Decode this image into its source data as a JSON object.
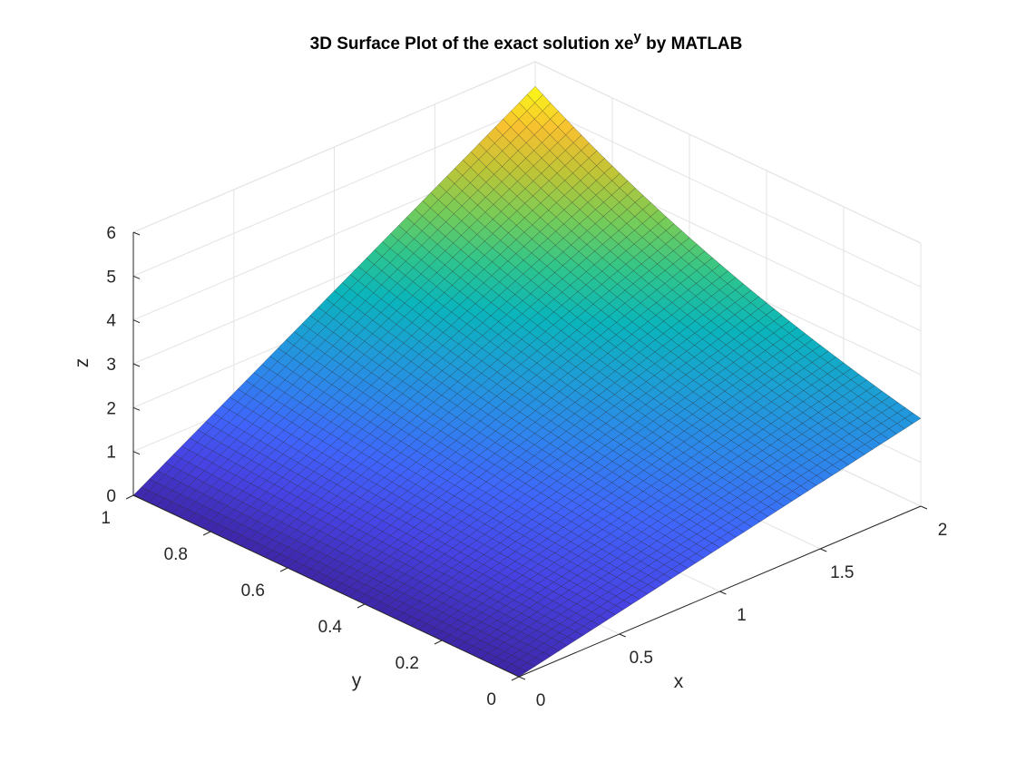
{
  "chart_data": {
    "type": "surface",
    "title_prefix": "3D Surface Plot of the exact solution  xe",
    "title_superscript": "y",
    "title_suffix": " by MATLAB",
    "function": "x*exp(y)",
    "xlabel": "x",
    "ylabel": "y",
    "zlabel": "z",
    "xlim": [
      0,
      2
    ],
    "ylim": [
      0,
      1
    ],
    "zlim": [
      0,
      6
    ],
    "xticks": [
      0,
      0.5,
      1,
      1.5,
      2
    ],
    "xtick_labels": [
      "0",
      "0.5",
      "1",
      "1.5",
      "2"
    ],
    "yticks": [
      0,
      0.2,
      0.4,
      0.6,
      0.8,
      1
    ],
    "ytick_labels": [
      "0",
      "0.2",
      "0.4",
      "0.6",
      "0.8",
      "1"
    ],
    "zticks": [
      0,
      1,
      2,
      3,
      4,
      5,
      6
    ],
    "ztick_labels": [
      "0",
      "1",
      "2",
      "3",
      "4",
      "5",
      "6"
    ],
    "grid": true,
    "colormap": "parula",
    "mesh_divisions": 50,
    "corner_values": [
      {
        "x": 0,
        "y": 0,
        "z": 0
      },
      {
        "x": 2,
        "y": 0,
        "z": 2
      },
      {
        "x": 0,
        "y": 1,
        "z": 0
      },
      {
        "x": 2,
        "y": 1,
        "z": 5.4366
      }
    ]
  }
}
